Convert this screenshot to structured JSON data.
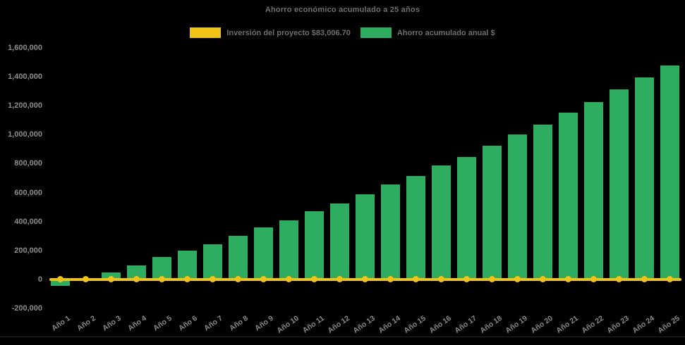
{
  "title": "Ahorro económico acumulado a 25 años",
  "legend": {
    "investment": {
      "label": "Inversión del proyecto $83,006.70",
      "color": "#F0C319"
    },
    "savings": {
      "label": "Ahorro acumulado anual $",
      "color": "#2EAC5F"
    }
  },
  "colors": {
    "background": "#000000",
    "bar_green": "#2EAC5F",
    "line_yellow": "#F0C319",
    "title_text": "#6F6F6F",
    "axis_text": "#8E8E8E"
  },
  "chart_data": {
    "type": "bar",
    "title": "Ahorro económico acumulado a 25 años",
    "categories": [
      "Año 1",
      "Año 2",
      "Año 3",
      "Año 4",
      "Año 5",
      "Año 6",
      "Año 7",
      "Año 8",
      "Año 9",
      "Año 10",
      "Año 11",
      "Año 12",
      "Año 13",
      "Año 14",
      "Año 15",
      "Año 16",
      "Año 17",
      "Año 18",
      "Año 19",
      "Año 20",
      "Año 21",
      "Año 22",
      "Año 23",
      "Año 24",
      "Año 25"
    ],
    "series": [
      {
        "name": "Ahorro acumulado anual $",
        "type": "bar",
        "color": "#2EAC5F",
        "values": [
          -43000,
          -1500,
          50000,
          99000,
          154000,
          199000,
          245000,
          300000,
          360000,
          410000,
          470000,
          524000,
          588000,
          654000,
          717000,
          790000,
          847000,
          924000,
          1000000,
          1070000,
          1151000,
          1224000,
          1313000,
          1398000,
          1478000
        ]
      },
      {
        "name": "Inversión del proyecto $83,006.70",
        "type": "line",
        "color": "#F0C319",
        "values": [
          0,
          0,
          0,
          0,
          0,
          0,
          0,
          0,
          0,
          0,
          0,
          0,
          0,
          0,
          0,
          0,
          0,
          0,
          0,
          0,
          0,
          0,
          0,
          0,
          0
        ]
      }
    ],
    "xlabel": "",
    "ylabel": "",
    "ylim": [
      -200000,
      1600000
    ],
    "ytick_step": 200000,
    "y_tick_labels": [
      "-200,000",
      "0",
      "200,000",
      "400,000",
      "600,000",
      "800,000",
      "1,000,000",
      "1,200,000",
      "1,400,000",
      "1,600,000"
    ],
    "grid": false,
    "legend_position": "top"
  }
}
